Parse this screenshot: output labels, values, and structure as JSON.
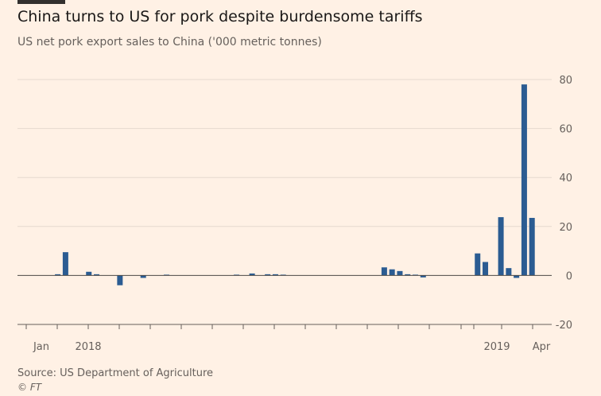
{
  "title": "China turns to US for pork despite burdensome tariffs",
  "subtitle": "US net pork export sales to China ('000 metric tonnes)",
  "source": "Source: US Department of Agriculture",
  "credit": "© FT",
  "colors": {
    "bar": "#2B5C92",
    "grid": "#E6D9CE",
    "axis": "#66605C",
    "background": "#FFF1E5"
  },
  "chart_data": {
    "type": "bar",
    "title": "China turns to US for pork despite burdensome tariffs",
    "subtitle": "US net pork export sales to China ('000 metric tonnes)",
    "xlabel": "",
    "ylabel": "",
    "ylim": [
      -20,
      80
    ],
    "yticks": [
      -20,
      0,
      20,
      40,
      60,
      80
    ],
    "grid": true,
    "y_axis_position": "right",
    "x_tick_labels": [
      {
        "label": "Jan",
        "week": 1
      },
      {
        "label": "2018",
        "week": 8
      },
      {
        "label": "2019",
        "week": 60
      },
      {
        "label": "Apr",
        "week": 65
      }
    ],
    "weeks": [
      1,
      2,
      3,
      4,
      5,
      6,
      7,
      8,
      9,
      10,
      11,
      12,
      13,
      14,
      15,
      16,
      17,
      18,
      19,
      20,
      21,
      22,
      23,
      24,
      25,
      26,
      27,
      28,
      29,
      30,
      31,
      32,
      33,
      34,
      35,
      36,
      37,
      38,
      39,
      40,
      41,
      42,
      43,
      44,
      45,
      46,
      47,
      48,
      49,
      50,
      51,
      52,
      53,
      54,
      55,
      56,
      57,
      58,
      59,
      60,
      61,
      62,
      63,
      64,
      65,
      66
    ],
    "values": [
      0,
      0,
      0,
      0,
      0.5,
      9.5,
      0,
      0,
      1.5,
      0.5,
      0,
      0,
      -4,
      0,
      0,
      -1,
      0,
      0,
      0.2,
      0,
      0,
      0,
      0,
      0,
      0,
      0,
      0,
      0.2,
      0,
      0.8,
      0,
      0.5,
      0.5,
      0.2,
      0,
      0,
      0,
      0,
      0,
      0,
      0,
      0,
      0,
      0,
      0,
      0,
      3.3,
      2.5,
      1.8,
      0.5,
      0.3,
      -0.8,
      0,
      0,
      0,
      0,
      0,
      0,
      9,
      5.5,
      0,
      23.8,
      3,
      -1,
      78,
      23.5
    ]
  }
}
